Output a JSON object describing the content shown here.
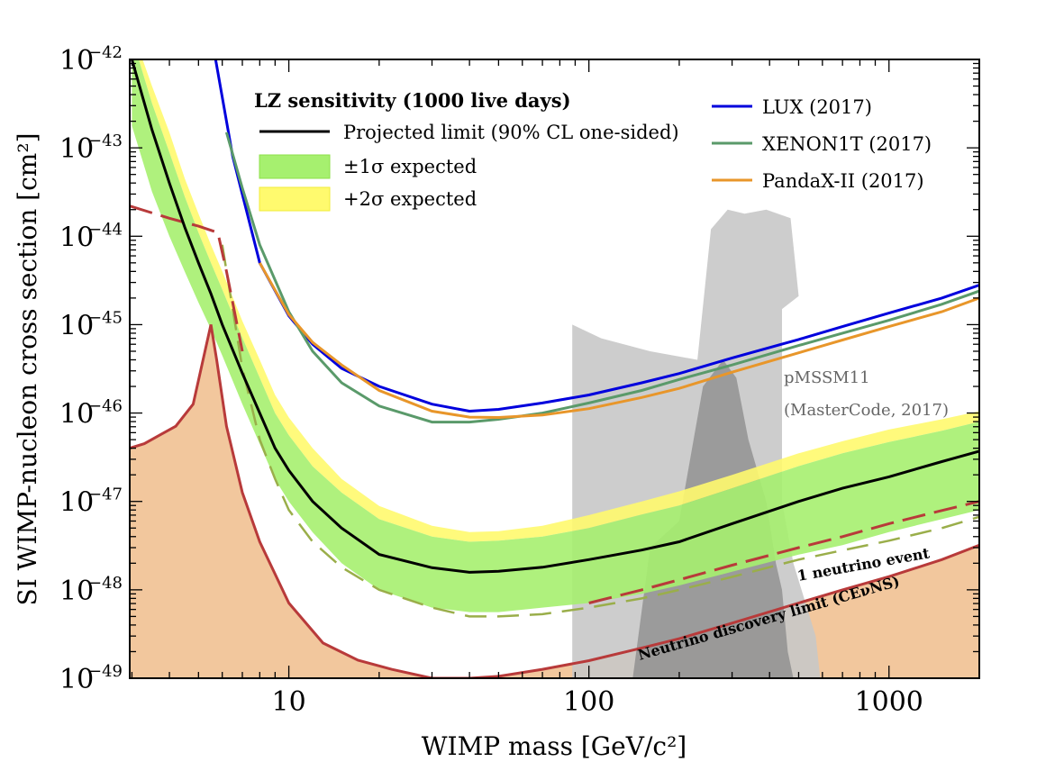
{
  "chart_data": {
    "type": "line",
    "xlabel": "WIMP mass [GeV/c²]",
    "ylabel": "SI WIMP-nucleon cross section [cm²]",
    "x_scale": "log",
    "y_scale": "log",
    "xlim": [
      2.95,
      2000
    ],
    "ylim": [
      1e-49,
      1e-42
    ],
    "x_ticks": [
      {
        "value": 10,
        "label": "10"
      },
      {
        "value": 100,
        "label": "100"
      },
      {
        "value": 1000,
        "label": "1000"
      }
    ],
    "y_ticks": [
      {
        "value": 1e-42,
        "label": "10",
        "exp": "−42"
      },
      {
        "value": 1e-43,
        "label": "10",
        "exp": "−43"
      },
      {
        "value": 1e-44,
        "label": "10",
        "exp": "−44"
      },
      {
        "value": 1e-45,
        "label": "10",
        "exp": "−45"
      },
      {
        "value": 1e-46,
        "label": "10",
        "exp": "−46"
      },
      {
        "value": 1e-47,
        "label": "10",
        "exp": "−47"
      },
      {
        "value": 1e-48,
        "label": "10",
        "exp": "−48"
      },
      {
        "value": 1e-49,
        "label": "10",
        "exp": "−49"
      }
    ],
    "grid": false,
    "legend_lz": {
      "title": "LZ sensitivity (1000 live days)",
      "entries": [
        "Projected limit (90% CL one-sided)",
        "±1σ expected",
        "+2σ expected"
      ],
      "placement": "top-center"
    },
    "legend_exp": {
      "entries": [
        "LUX (2017)",
        "XENON1T (2017)",
        "PandaX-II (2017)"
      ],
      "placement": "top-right"
    },
    "colors": {
      "lz": "#000000",
      "sigma1": "#a6f06f",
      "sigma2": "#fffa6e",
      "lux": "#0000dd",
      "xenon": "#5a9a6a",
      "pandax": "#e8962a",
      "nu_fill": "#f2c79d",
      "nu_line": "#b83a3a",
      "pmssm_outer": "#c8c8c8",
      "pmssm_inner": "#8a8a8a",
      "lz_dashed": "#9aae4a"
    },
    "annotations": {
      "pmssm_line1": "pMSSM11",
      "pmssm_line2": "(MasterCode, 2017)",
      "one_neutrino": "1 neutrino event",
      "nu_discovery": "Neutrino discovery limit (CEνNS)"
    },
    "series": [
      {
        "name": "Projected limit (90% CL one-sided)",
        "style": "solid",
        "x": [
          3,
          3.5,
          4,
          4.5,
          5,
          5.5,
          6,
          7,
          8,
          9,
          10,
          12,
          15,
          20,
          30,
          40,
          50,
          70,
          100,
          150,
          200,
          300,
          500,
          700,
          1000,
          1500,
          2000
        ],
        "y": [
          1e-42,
          1.6e-43,
          4e-44,
          1.26e-44,
          5e-45,
          2.24e-45,
          1e-45,
          2.82e-46,
          1e-46,
          4e-47,
          2.24e-47,
          1e-47,
          5e-48,
          2.51e-48,
          1.78e-48,
          1.58e-48,
          1.62e-48,
          1.8e-48,
          2.2e-48,
          2.82e-48,
          3.5e-48,
          5.6e-48,
          1e-47,
          1.41e-47,
          1.9e-47,
          2.82e-47,
          3.7e-47
        ]
      },
      {
        "name": "±1σ expected",
        "band": true,
        "x": [
          3,
          3.5,
          4,
          4.5,
          5,
          5.5,
          6,
          7,
          8,
          9,
          10,
          12,
          15,
          20,
          30,
          40,
          50,
          70,
          100,
          150,
          200,
          300,
          500,
          700,
          1000,
          1500,
          2000
        ],
        "y_low": [
          1.78e-43,
          3.2e-44,
          1e-44,
          3.98e-45,
          1.78e-45,
          8.9e-46,
          4.47e-46,
          1.26e-46,
          4.47e-47,
          1.78e-47,
          1e-47,
          4.47e-48,
          2e-48,
          1e-48,
          6.3e-49,
          5.6e-49,
          5.6e-49,
          6.3e-49,
          7.1e-49,
          9e-49,
          1.12e-48,
          1.6e-48,
          2.5e-48,
          3.2e-48,
          4.5e-48,
          6.3e-48,
          8e-48
        ],
        "y_high": [
          1.8e-42,
          3.2e-43,
          8.9e-44,
          2.8e-44,
          1.1e-44,
          5e-45,
          2.5e-45,
          7.1e-46,
          2.5e-46,
          1e-46,
          5.6e-47,
          2.5e-47,
          1.26e-47,
          6.3e-48,
          4e-48,
          3.5e-48,
          3.6e-48,
          4e-48,
          5e-48,
          7.1e-48,
          9e-48,
          1.41e-47,
          2.51e-47,
          3.5e-47,
          4.7e-47,
          6.3e-47,
          8e-47
        ]
      },
      {
        "name": "+2σ expected",
        "band": true,
        "x": [
          3,
          3.5,
          4,
          4.5,
          5,
          5.5,
          6,
          7,
          8,
          9,
          10,
          12,
          15,
          20,
          30,
          40,
          50,
          70,
          100,
          150,
          200,
          300,
          500,
          700,
          1000,
          1500,
          2000
        ],
        "y_high": [
          2.2e-42,
          5e-43,
          1.5e-43,
          4.5e-44,
          1.8e-44,
          8e-45,
          4e-45,
          1.1e-45,
          4e-46,
          1.6e-46,
          8.9e-47,
          4e-47,
          1.8e-47,
          8.9e-48,
          5.3e-48,
          4.5e-48,
          4.6e-48,
          5.3e-48,
          7e-48,
          1e-47,
          1.3e-47,
          2e-47,
          3.5e-47,
          4.8e-47,
          6.5e-47,
          8.5e-47,
          1.05e-46
        ]
      },
      {
        "name": "LZ lower dashed",
        "style": "dashed",
        "x": [
          6,
          7,
          8,
          9,
          10,
          12,
          15,
          20,
          30,
          40,
          50,
          70,
          100,
          150,
          200,
          300,
          500,
          700,
          1000,
          1500,
          2000
        ],
        "y": [
          8e-45,
          3.2e-46,
          5e-47,
          1.8e-47,
          8e-48,
          3.5e-48,
          1.8e-48,
          1e-48,
          6.3e-49,
          5e-49,
          5e-49,
          5.3e-49,
          6.3e-49,
          8e-49,
          1e-48,
          1.4e-48,
          2.2e-48,
          2.8e-48,
          3.6e-48,
          5e-48,
          6.7e-48
        ]
      },
      {
        "name": "LUX (2017)",
        "style": "solid",
        "x": [
          5.7,
          6.5,
          8,
          10,
          12,
          15,
          20,
          30,
          40,
          50,
          70,
          100,
          150,
          200,
          300,
          500,
          700,
          1000,
          1500,
          2000
        ],
        "y": [
          1e-42,
          8e-44,
          5e-45,
          1.26e-45,
          6e-46,
          3.2e-46,
          2e-46,
          1.26e-46,
          1.05e-46,
          1.1e-46,
          1.3e-46,
          1.6e-46,
          2.2e-46,
          2.8e-46,
          4.2e-46,
          6.8e-46,
          9.5e-46,
          1.35e-45,
          2e-45,
          2.8e-45
        ]
      },
      {
        "name": "XENON1T (2017)",
        "style": "solid",
        "x": [
          6.2,
          7,
          8,
          10,
          12,
          15,
          20,
          30,
          40,
          50,
          70,
          100,
          150,
          200,
          300,
          500,
          700,
          1000,
          1500,
          2000
        ],
        "y": [
          1.5e-43,
          3.5e-44,
          8e-45,
          1.4e-45,
          5e-46,
          2.2e-46,
          1.2e-46,
          7.9e-47,
          7.9e-47,
          8.5e-47,
          1e-46,
          1.3e-46,
          1.8e-46,
          2.4e-46,
          3.5e-46,
          5.8e-46,
          8e-46,
          1.12e-45,
          1.7e-45,
          2.4e-45
        ]
      },
      {
        "name": "PandaX-II (2017)",
        "style": "solid",
        "x": [
          8,
          10,
          12,
          15,
          20,
          30,
          40,
          50,
          70,
          100,
          150,
          200,
          300,
          500,
          700,
          1000,
          1500,
          2000
        ],
        "y": [
          5e-45,
          1.3e-45,
          6.3e-46,
          3.5e-46,
          1.8e-46,
          1.05e-46,
          9e-47,
          8.9e-47,
          9.5e-47,
          1.12e-46,
          1.5e-46,
          1.9e-46,
          2.9e-46,
          4.8e-46,
          6.7e-46,
          9.5e-46,
          1.4e-45,
          2e-45
        ]
      },
      {
        "name": "Neutrino discovery limit (CEνNS)",
        "style": "solid",
        "filled": true,
        "x": [
          2.95,
          3.3,
          3.7,
          4.2,
          4.8,
          5.5,
          5.75,
          6.2,
          7,
          8,
          10,
          13,
          17,
          22,
          30,
          40,
          50,
          70,
          100,
          150,
          200,
          300,
          500,
          700,
          1000,
          1500,
          2000
        ],
        "y": [
          4e-47,
          4.5e-47,
          5.6e-47,
          7.1e-47,
          1.26e-46,
          1e-45,
          4e-46,
          7.1e-47,
          1.26e-47,
          3.5e-48,
          7.1e-49,
          2.5e-49,
          1.6e-49,
          1.26e-49,
          1e-49,
          1e-49,
          1.05e-49,
          1.26e-49,
          1.58e-49,
          2.2e-49,
          2.8e-49,
          4.2e-49,
          7.1e-49,
          1e-48,
          1.41e-48,
          2.2e-48,
          3.2e-48
        ]
      },
      {
        "name": "1 neutrino event",
        "style": "dashed",
        "x": [
          2.95,
          4,
          5,
          5.8,
          6.2,
          7
        ],
        "y": [
          2.2e-44,
          1.6e-44,
          1.3e-44,
          1.1e-44,
          4e-45,
          5e-46
        ]
      },
      {
        "name": "1 neutrino event (high mass)",
        "style": "dashed",
        "x": [
          100,
          150,
          200,
          300,
          500,
          700,
          1000,
          1500,
          2000
        ],
        "y": [
          7.1e-49,
          1e-48,
          1.3e-48,
          1.9e-48,
          3e-48,
          4e-48,
          5.6e-48,
          7.9e-48,
          1e-47
        ]
      }
    ],
    "regions": [
      {
        "name": "pMSSM11 outer",
        "points": [
          [
            88,
            1e-49
          ],
          [
            88,
            1e-45
          ],
          [
            110,
            7e-46
          ],
          [
            160,
            5e-46
          ],
          [
            230,
            4e-46
          ],
          [
            255,
            1.2e-44
          ],
          [
            290,
            2e-44
          ],
          [
            330,
            1.8e-44
          ],
          [
            390,
            2e-44
          ],
          [
            470,
            1.6e-44
          ],
          [
            500,
            2.1e-45
          ],
          [
            440,
            1.5e-45
          ],
          [
            440,
            1e-47
          ],
          [
            480,
            2e-48
          ],
          [
            570,
            3e-49
          ],
          [
            590,
            1e-49
          ]
        ]
      },
      {
        "name": "pMSSM11 inner",
        "points": [
          [
            140,
            1e-49
          ],
          [
            160,
            3e-48
          ],
          [
            200,
            6e-48
          ],
          [
            240,
            2e-46
          ],
          [
            280,
            4e-46
          ],
          [
            310,
            2.5e-46
          ],
          [
            340,
            5e-47
          ],
          [
            390,
            1e-47
          ],
          [
            420,
            2e-48
          ],
          [
            440,
            1e-48
          ],
          [
            460,
            2e-49
          ],
          [
            480,
            1e-49
          ]
        ]
      }
    ]
  }
}
